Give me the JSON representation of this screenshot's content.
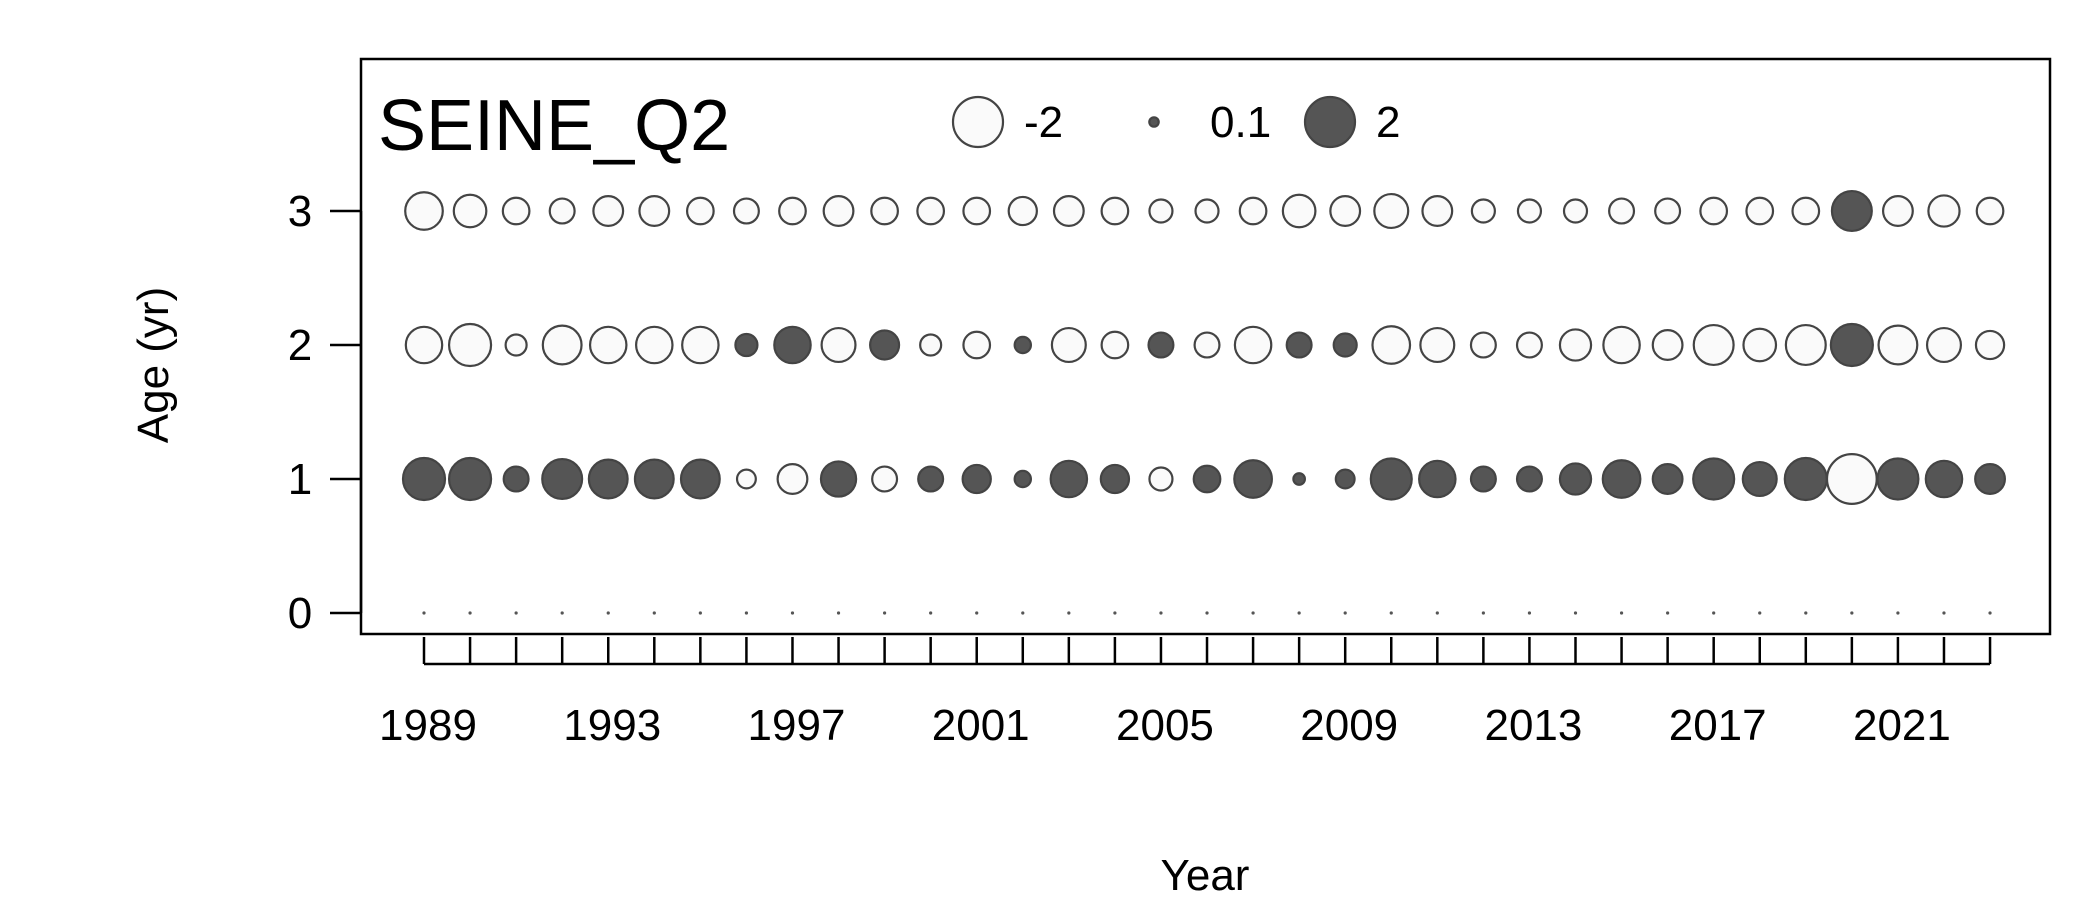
{
  "chart_data": {
    "type": "bubble",
    "title": "SEINE_Q2",
    "xlabel": "Year",
    "ylabel": "Age (yr)",
    "x_tick_labels": [
      "1989",
      "1993",
      "1997",
      "2001",
      "2005",
      "2009",
      "2013",
      "2017",
      "2021"
    ],
    "y_tick_labels": [
      "0",
      "1",
      "2",
      "3"
    ],
    "xlim": [
      1988.5,
      2023.5
    ],
    "ylim": [
      0,
      3
    ],
    "years": [
      1989,
      1990,
      1991,
      1992,
      1993,
      1994,
      1995,
      1996,
      1997,
      1998,
      1999,
      2000,
      2001,
      2002,
      2003,
      2004,
      2005,
      2006,
      2007,
      2008,
      2009,
      2010,
      2011,
      2012,
      2013,
      2014,
      2015,
      2016,
      2017,
      2018,
      2019,
      2020,
      2021,
      2022,
      2023
    ],
    "ages": [
      0,
      1,
      2,
      3
    ],
    "residuals": {
      "0": [
        0,
        0,
        0,
        0,
        0,
        0,
        0,
        0,
        0,
        0,
        0,
        0,
        0,
        0,
        0,
        0,
        0,
        0,
        0,
        0,
        0,
        0,
        0,
        0,
        0,
        0,
        0,
        0,
        0,
        0,
        0,
        0,
        0,
        0,
        0
      ],
      "1": [
        2.0,
        2.0,
        0.7,
        1.8,
        1.7,
        1.7,
        1.7,
        -0.4,
        -1.0,
        1.4,
        -0.7,
        0.7,
        0.9,
        0.3,
        1.5,
        0.9,
        -0.6,
        0.8,
        1.6,
        0.15,
        0.4,
        1.9,
        1.5,
        0.7,
        0.7,
        1.1,
        1.6,
        1.0,
        1.9,
        1.3,
        2.0,
        -2.8,
        1.9,
        1.5,
        1.0
      ],
      "2": [
        -1.5,
        -2.0,
        -0.5,
        -1.7,
        -1.5,
        -1.5,
        -1.5,
        0.55,
        1.5,
        -1.3,
        0.95,
        -0.5,
        -0.8,
        0.3,
        -1.3,
        -0.8,
        0.7,
        -0.7,
        -1.5,
        0.7,
        0.6,
        -1.6,
        -1.3,
        -0.7,
        -0.7,
        -1.1,
        -1.5,
        -1.0,
        -1.8,
        -1.2,
        -1.8,
        2.0,
        -1.7,
        -1.3,
        -0.9
      ],
      "3": [
        -1.6,
        -1.2,
        -0.8,
        -0.7,
        -1.0,
        -1.0,
        -0.8,
        -0.7,
        -0.8,
        -1.0,
        -0.8,
        -0.8,
        -0.8,
        -0.9,
        -1.0,
        -0.8,
        -0.6,
        -0.6,
        -0.8,
        -1.2,
        -1.0,
        -1.3,
        -1.0,
        -0.6,
        -0.6,
        -0.6,
        -0.7,
        -0.7,
        -0.8,
        -0.8,
        -0.8,
        1.8,
        -1.0,
        -1.1,
        -0.8
      ]
    },
    "legend": {
      "values": [
        -2,
        0.1,
        2
      ],
      "labels": [
        "-2",
        "0.1",
        "2"
      ],
      "placement": "top-center"
    },
    "colors": {
      "positive_fill": "#555555",
      "negative_fill": "#fafafa",
      "outline": "#444444"
    }
  }
}
